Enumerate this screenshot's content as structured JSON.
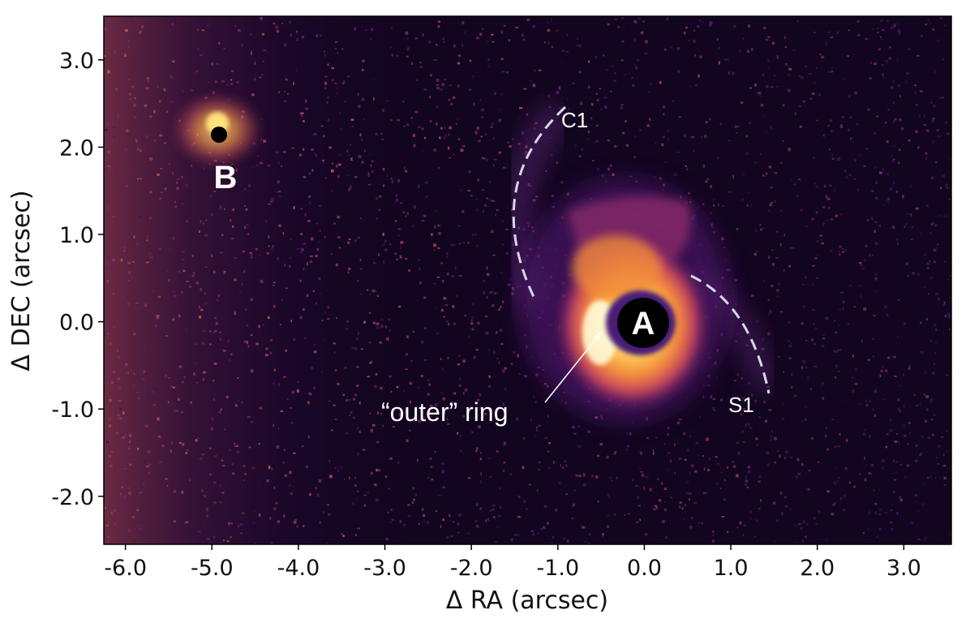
{
  "figure": {
    "xlabel": "Δ RA (arcsec)",
    "ylabel": "Δ DEC (arcsec)",
    "x_ticks": [
      "-6.0",
      "-5.0",
      "-4.0",
      "-3.0",
      "-2.0",
      "-1.0",
      "0.0",
      "1.0",
      "2.0",
      "3.0"
    ],
    "y_ticks": [
      "3.0",
      "2.0",
      "1.0",
      "0.0",
      "-1.0",
      "-2.0"
    ],
    "xlim": [
      -6.25,
      3.55
    ],
    "ylim": [
      -2.55,
      3.5
    ],
    "colormap": "inferno",
    "colors": {
      "background": "#12051f",
      "frame": "#000000",
      "annotation": "#ffffff",
      "dashed_arc": "#d8d8e8"
    }
  },
  "annotations": {
    "star_a": "A",
    "star_b": "B",
    "c1": "C1",
    "s1": "S1",
    "outer_ring": "“outer” ring"
  }
}
